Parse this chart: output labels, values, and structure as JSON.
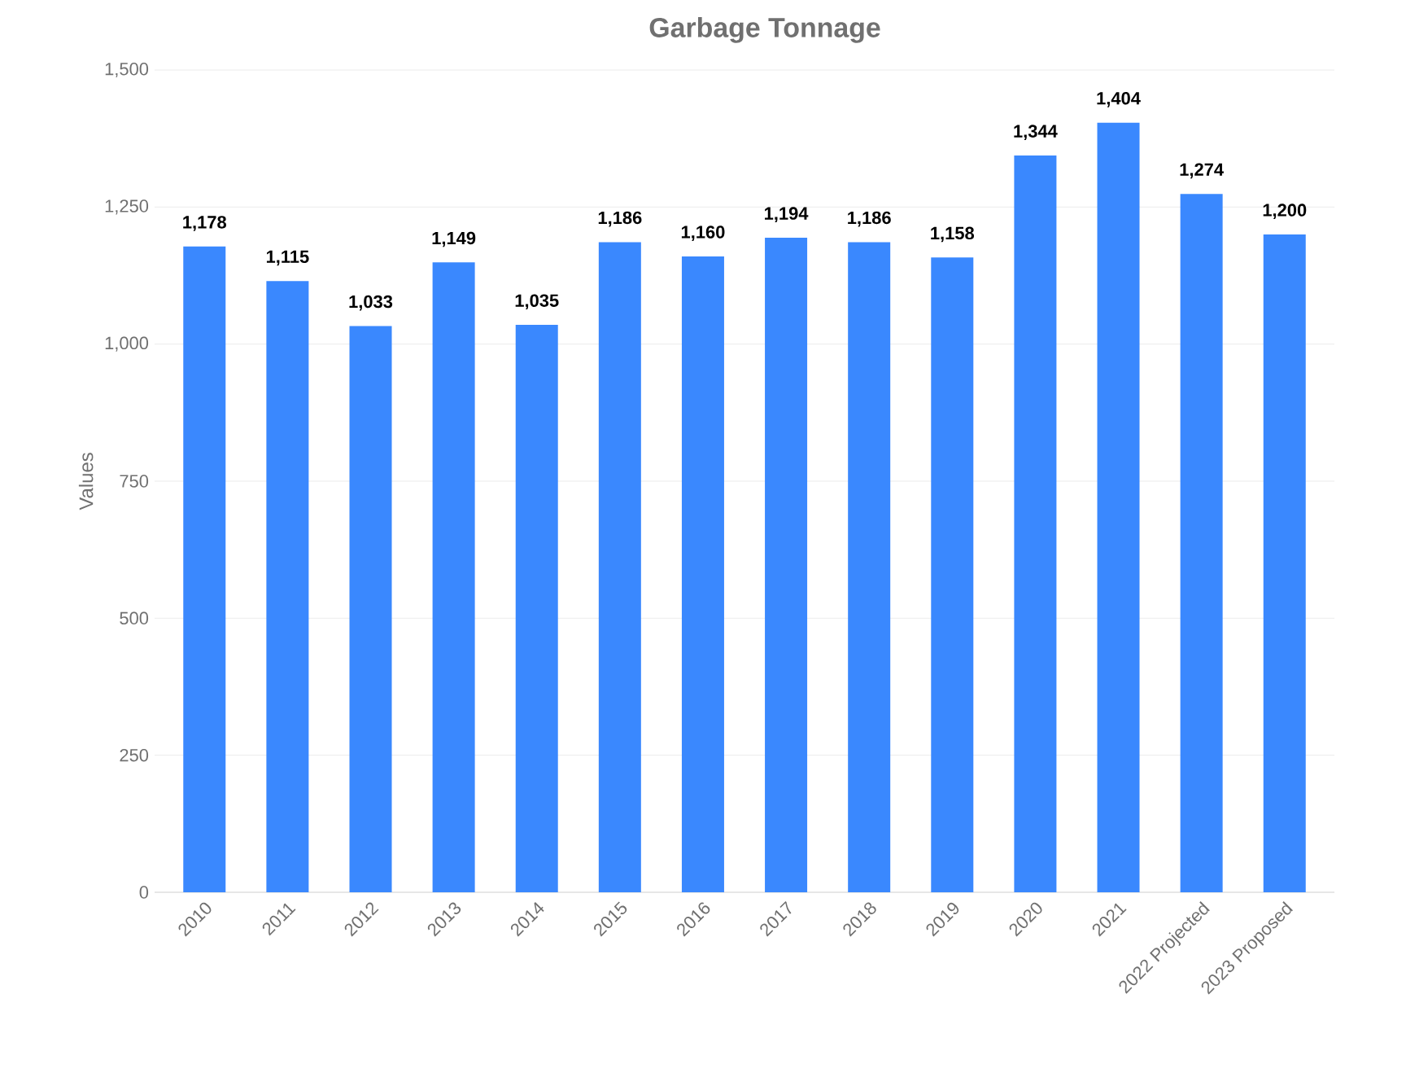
{
  "chart_data": {
    "type": "bar",
    "title": "Garbage Tonnage",
    "ylabel": "Values",
    "categories": [
      "2010",
      "2011",
      "2012",
      "2013",
      "2014",
      "2015",
      "2016",
      "2017",
      "2018",
      "2019",
      "2020",
      "2021",
      "2022 Projected",
      "2023 Proposed"
    ],
    "values": [
      1178,
      1115,
      1033,
      1149,
      1035,
      1186,
      1160,
      1194,
      1186,
      1158,
      1344,
      1404,
      1274,
      1200
    ],
    "value_labels": [
      "1,178",
      "1,115",
      "1,033",
      "1,149",
      "1,035",
      "1,186",
      "1,160",
      "1,194",
      "1,186",
      "1,158",
      "1,344",
      "1,404",
      "1,274",
      "1,200"
    ],
    "color": "#3a88fe",
    "ylim": [
      0,
      1500
    ],
    "yticks": [
      0,
      250,
      500,
      750,
      {
        "value": 1000,
        "label": "1,000"
      },
      {
        "value": 1250,
        "label": "1,250"
      },
      {
        "value": 1500,
        "label": "1,500"
      }
    ],
    "grid": "y"
  }
}
